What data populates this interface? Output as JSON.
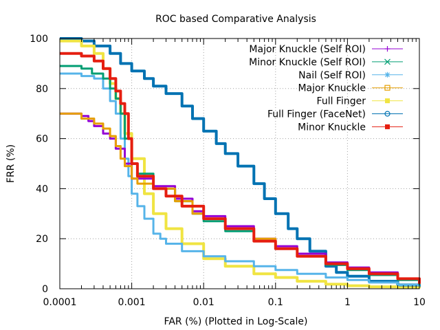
{
  "chart_data": {
    "type": "line",
    "title": "ROC based Comparative Analysis",
    "xlabel": "FAR (%) (Plotted in Log-Scale)",
    "ylabel": "FRR (%)",
    "xscale": "log",
    "xlim": [
      0.0001,
      10
    ],
    "ylim": [
      0,
      100
    ],
    "x_ticks": [
      0.0001,
      0.001,
      0.01,
      0.1,
      1,
      10
    ],
    "x_tick_labels": [
      "0.0001",
      "0.001",
      "0.01",
      "0.1",
      "1",
      "10"
    ],
    "y_ticks": [
      0,
      20,
      40,
      60,
      80,
      100
    ],
    "y_tick_labels": [
      "0",
      "20",
      "40",
      "60",
      "80",
      "100"
    ],
    "grid": true,
    "legend_position": "top-right",
    "series": [
      {
        "name": "Major Knuckle (Self ROI)",
        "color": "#9400d3",
        "marker": "plus",
        "x": [
          0.0001,
          0.0002,
          0.00025,
          0.0003,
          0.0004,
          0.0005,
          0.0006,
          0.0008,
          0.001,
          0.002,
          0.004,
          0.007,
          0.01,
          0.02,
          0.05,
          0.1,
          0.2,
          0.5,
          1,
          2,
          5,
          10
        ],
        "y": [
          70,
          69,
          67,
          65,
          62,
          60,
          56,
          50,
          44,
          41,
          36,
          31,
          29,
          25,
          20,
          17,
          14,
          10.5,
          8.5,
          6.5,
          4,
          2
        ]
      },
      {
        "name": "Minor Knuckle (Self ROI)",
        "color": "#009e73",
        "marker": "x",
        "x": [
          0.0001,
          0.0002,
          0.00028,
          0.0004,
          0.0005,
          0.0006,
          0.0007,
          0.0008,
          0.001,
          0.0012,
          0.002,
          0.004,
          0.007,
          0.01,
          0.02,
          0.05,
          0.1,
          0.2,
          0.5,
          1,
          2,
          5,
          10
        ],
        "y": [
          89,
          88,
          86,
          84,
          80,
          76,
          70,
          60,
          50,
          46,
          40,
          35,
          30,
          27,
          23,
          19,
          16,
          13,
          9.5,
          7.5,
          5.5,
          3.5,
          1.5
        ]
      },
      {
        "name": "Nail (Self ROI)",
        "color": "#56b4e9",
        "marker": "star",
        "x": [
          0.0001,
          0.0002,
          0.0003,
          0.0004,
          0.0005,
          0.0006,
          0.0007,
          0.0008,
          0.0009,
          0.001,
          0.0012,
          0.0015,
          0.002,
          0.0025,
          0.003,
          0.005,
          0.01,
          0.02,
          0.05,
          0.1,
          0.2,
          0.5,
          1,
          2,
          5,
          10
        ],
        "y": [
          86,
          85,
          84,
          80,
          75,
          70,
          60,
          52,
          45,
          38,
          33,
          28,
          22,
          20,
          18,
          15,
          13,
          11,
          9,
          7.5,
          6,
          4.5,
          3.5,
          2.5,
          1.5,
          1
        ]
      },
      {
        "name": "Major Knuckle",
        "color": "#e69f00",
        "marker": "square",
        "x": [
          0.0001,
          0.0002,
          0.0003,
          0.0004,
          0.0005,
          0.0006,
          0.0007,
          0.0008,
          0.001,
          0.0012,
          0.002,
          0.004,
          0.007,
          0.01,
          0.02,
          0.05,
          0.1,
          0.2,
          0.5,
          1,
          2,
          5,
          10
        ],
        "y": [
          70,
          68,
          66,
          64,
          61,
          57,
          52,
          49,
          44,
          42,
          40,
          35,
          30,
          28,
          24,
          20,
          16,
          13,
          10,
          8,
          6,
          4,
          2
        ]
      },
      {
        "name": "Full Finger",
        "color": "#f0e442",
        "marker": "filled-square",
        "x": [
          0.0001,
          0.0002,
          0.0003,
          0.0004,
          0.0005,
          0.0006,
          0.0007,
          0.0008,
          0.001,
          0.0015,
          0.002,
          0.003,
          0.005,
          0.01,
          0.02,
          0.05,
          0.1,
          0.2,
          0.5,
          1,
          2,
          5,
          10
        ],
        "y": [
          99,
          97,
          94,
          88,
          82,
          76,
          70,
          62,
          52,
          38,
          30,
          24,
          18,
          12,
          9,
          6,
          4.5,
          3,
          1.8,
          1.2,
          0.8,
          0.4,
          0.2
        ]
      },
      {
        "name": "Full Finger (FaceNet)",
        "color": "#0072b2",
        "marker": "circle",
        "x": [
          0.0001,
          0.0002,
          0.0003,
          0.0005,
          0.0007,
          0.001,
          0.0015,
          0.002,
          0.003,
          0.005,
          0.007,
          0.01,
          0.015,
          0.02,
          0.03,
          0.05,
          0.07,
          0.1,
          0.15,
          0.2,
          0.3,
          0.5,
          0.7,
          1,
          2,
          5,
          10
        ],
        "y": [
          100,
          99,
          97,
          94,
          90,
          87,
          84,
          81,
          78,
          73,
          68,
          63,
          58,
          54,
          49,
          42,
          36,
          30,
          24,
          20,
          15,
          9,
          6.5,
          5,
          3,
          1.5,
          0.5
        ]
      },
      {
        "name": "Minor Knuckle",
        "color": "#e51e10",
        "marker": "filled-square",
        "x": [
          0.0001,
          0.0002,
          0.0003,
          0.0004,
          0.0005,
          0.0006,
          0.0007,
          0.0008,
          0.0009,
          0.001,
          0.0012,
          0.002,
          0.003,
          0.005,
          0.01,
          0.02,
          0.05,
          0.1,
          0.2,
          0.5,
          1,
          2,
          5,
          10
        ],
        "y": [
          94,
          93,
          91,
          88,
          84,
          79,
          74,
          70,
          60,
          50,
          45,
          40,
          37,
          33,
          28,
          24,
          19,
          16,
          13,
          10,
          8,
          6,
          4,
          2
        ]
      }
    ]
  }
}
